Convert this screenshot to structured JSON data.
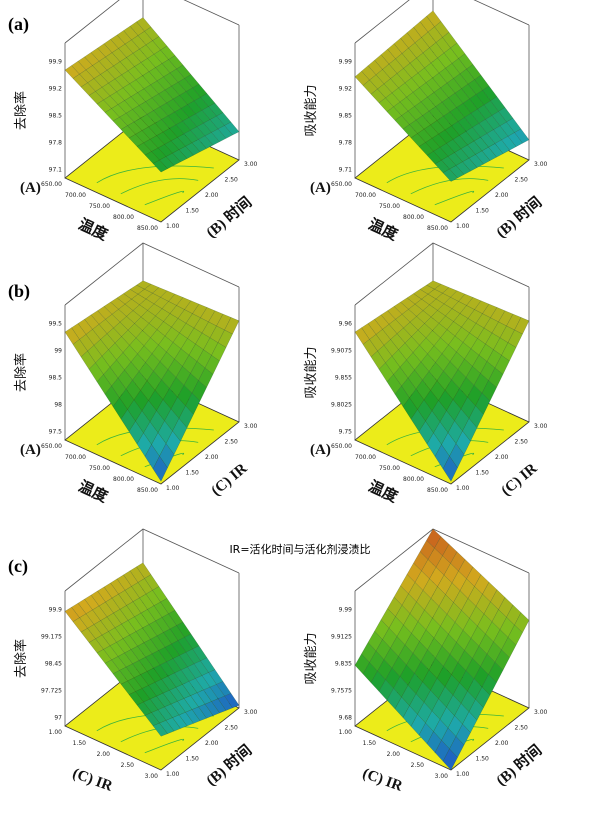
{
  "panels": [
    {
      "label": "(a)",
      "plots": [
        {
          "z_label": "去除率",
          "z_ticks": [
            "99.9",
            "99.2",
            "98.5",
            "97.8",
            "97.1"
          ],
          "x_axis": {
            "code": "(A)",
            "name": "温度",
            "ticks": [
              "650.00",
              "700.00",
              "750.00",
              "800.00",
              "850.00"
            ]
          },
          "y_axis": {
            "label": "(B) 时间",
            "ticks": [
              "1.00",
              "1.50",
              "2.00",
              "2.50",
              "3.00"
            ]
          }
        },
        {
          "z_label": "吸收能力",
          "z_ticks": [
            "9.99",
            "9.92",
            "9.85",
            "9.78",
            "9.71"
          ],
          "x_axis": {
            "code": "(A)",
            "name": "温度",
            "ticks": [
              "650.00",
              "700.00",
              "750.00",
              "800.00",
              "850.00"
            ]
          },
          "y_axis": {
            "label": "(B) 时间",
            "ticks": [
              "1.00",
              "1.50",
              "2.00",
              "2.50",
              "3.00"
            ]
          }
        }
      ]
    },
    {
      "label": "(b)",
      "plots": [
        {
          "z_label": "去除率",
          "z_ticks": [
            "99.5",
            "99",
            "98.5",
            "98",
            "97.5"
          ],
          "x_axis": {
            "code": "(A)",
            "name": "温度",
            "ticks": [
              "650.00",
              "700.00",
              "750.00",
              "800.00",
              "850.00"
            ]
          },
          "y_axis": {
            "label": "(C) IR",
            "ticks": [
              "1.00",
              "1.50",
              "2.00",
              "2.50",
              "3.00"
            ]
          }
        },
        {
          "z_label": "吸收能力",
          "z_ticks": [
            "9.96",
            "9.9075",
            "9.855",
            "9.8025",
            "9.75"
          ],
          "x_axis": {
            "code": "(A)",
            "name": "温度",
            "ticks": [
              "650.00",
              "700.00",
              "750.00",
              "800.00",
              "850.00"
            ]
          },
          "y_axis": {
            "label": "(C) IR",
            "ticks": [
              "1.00",
              "1.50",
              "2.00",
              "2.50",
              "3.00"
            ]
          }
        }
      ]
    },
    {
      "label": "(c)",
      "plots": [
        {
          "z_label": "去除率",
          "z_ticks": [
            "99.9",
            "99.175",
            "98.45",
            "97.725",
            "97"
          ],
          "x_axis": {
            "label": "(C) IR",
            "ticks": [
              "1.00",
              "1.50",
              "2.00",
              "2.50",
              "3.00"
            ]
          },
          "y_axis": {
            "label": "(B) 时间",
            "ticks": [
              "1.00",
              "1.50",
              "2.00",
              "2.50",
              "3.00"
            ]
          }
        },
        {
          "z_label": "吸收能力",
          "z_ticks": [
            "9.99",
            "9.9125",
            "9.835",
            "9.7575",
            "9.68"
          ],
          "x_axis": {
            "label": "(C) IR",
            "ticks": [
              "1.00",
              "1.50",
              "2.00",
              "2.50",
              "3.00"
            ]
          },
          "y_axis": {
            "label": "(B) 时间",
            "ticks": [
              "1.00",
              "1.50",
              "2.00",
              "2.50",
              "3.00"
            ]
          }
        }
      ]
    }
  ],
  "note": "IR=活化时间与活化剂浸渍比"
}
